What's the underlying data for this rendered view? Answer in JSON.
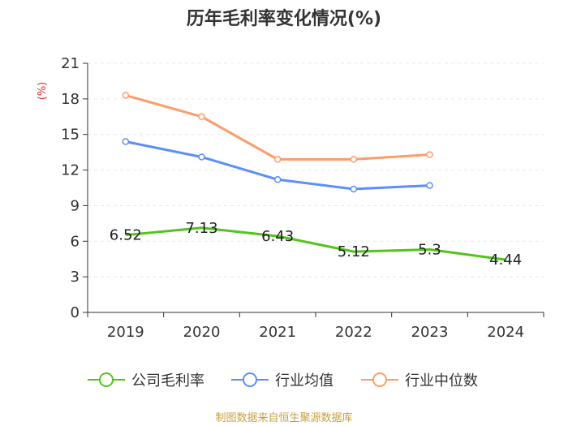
{
  "chart_data": {
    "type": "line",
    "title": "历年毛利率变化情况(%)",
    "ylabel": "(%)",
    "categories": [
      "2019",
      "2020",
      "2021",
      "2022",
      "2023",
      "2024"
    ],
    "ylim": [
      0,
      21
    ],
    "yticks": [
      0,
      3,
      6,
      9,
      12,
      15,
      18,
      21
    ],
    "series": [
      {
        "name": "公司毛利率",
        "color": "#52c41a",
        "values": [
          6.52,
          7.13,
          6.43,
          5.12,
          5.3,
          4.44
        ],
        "labels": [
          "6.52",
          "7.13",
          "6.43",
          "5.12",
          "5.3",
          "4.44"
        ],
        "markers": false
      },
      {
        "name": "行业均值",
        "color": "#5b8ff9",
        "values": [
          14.4,
          13.1,
          11.2,
          10.4,
          10.7,
          null
        ],
        "markers": true
      },
      {
        "name": "行业中位数",
        "color": "#ff9b6a",
        "values": [
          18.3,
          16.5,
          12.9,
          12.9,
          13.3,
          null
        ],
        "markers": true
      }
    ],
    "source": "制图数据来自恒生聚源数据库"
  },
  "colors": {
    "axis": "#333333",
    "grid": "#e8e8e8",
    "ylabel": "#e03030",
    "source": "#c8a040"
  }
}
